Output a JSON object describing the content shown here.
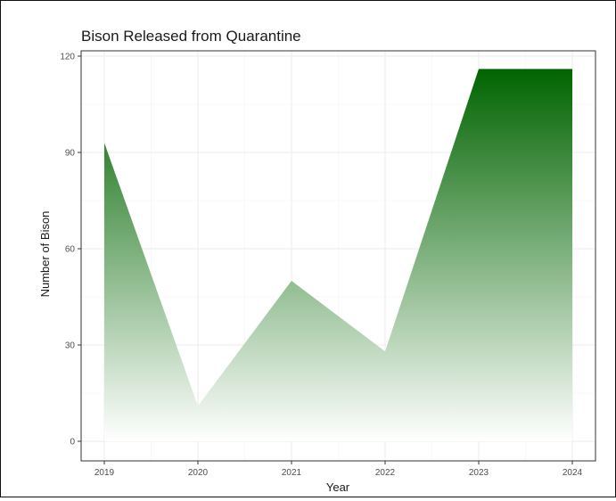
{
  "chart_data": {
    "type": "area",
    "title": "Bison Released from Quarantine",
    "xlabel": "Year",
    "ylabel": "Number of Bison",
    "x": [
      2019,
      2020,
      2021,
      2022,
      2023,
      2024
    ],
    "values": [
      93,
      11,
      50,
      28,
      116,
      116
    ],
    "x_tick_labels": [
      "2019",
      "2020",
      "2021",
      "2022",
      "2023",
      "2024"
    ],
    "y_ticks": [
      0,
      30,
      60,
      90,
      120
    ],
    "y_tick_labels": [
      "0",
      "30",
      "60",
      "90",
      "120"
    ],
    "xlim": [
      2019,
      2024
    ],
    "ylim": [
      0,
      120
    ],
    "grid": true,
    "fill_gradient": {
      "top_color": "#006400",
      "bottom_color": "#ffffff"
    }
  }
}
